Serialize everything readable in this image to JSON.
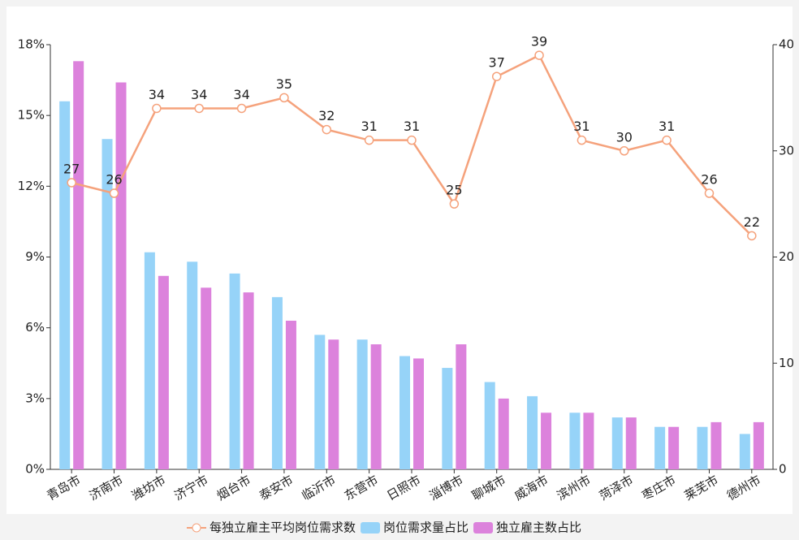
{
  "chart_data": {
    "type": "bar",
    "categories": [
      "青岛市",
      "济南市",
      "潍坊市",
      "济宁市",
      "烟台市",
      "泰安市",
      "临沂市",
      "东营市",
      "日照市",
      "淄博市",
      "聊城市",
      "威海市",
      "滨州市",
      "菏泽市",
      "枣庄市",
      "莱芜市",
      "德州市"
    ],
    "series": [
      {
        "name": "每独立雇主平均岗位需求数",
        "type": "line",
        "axis": "y2",
        "color": "#f5a27c",
        "values": [
          27,
          26,
          34,
          34,
          34,
          35,
          32,
          31,
          31,
          25,
          37,
          39,
          31,
          30,
          31,
          26,
          22
        ]
      },
      {
        "name": "岗位需求量占比",
        "type": "bar",
        "color": "#96d3f8",
        "values": [
          15.6,
          14.0,
          9.2,
          8.8,
          8.3,
          7.3,
          5.7,
          5.5,
          4.8,
          4.3,
          3.7,
          3.1,
          2.4,
          2.2,
          1.8,
          1.8,
          1.5
        ]
      },
      {
        "name": "独立雇主数占比",
        "type": "bar",
        "color": "#dc82dc",
        "values": [
          17.3,
          16.4,
          8.2,
          7.7,
          7.5,
          6.3,
          5.5,
          5.3,
          4.7,
          5.3,
          3.0,
          2.4,
          2.4,
          2.2,
          1.8,
          2.0,
          2.0
        ]
      }
    ],
    "ylim": [
      0,
      18
    ],
    "yticks": [
      {
        "value": 0,
        "label": "0%"
      },
      {
        "value": 3,
        "label": "3%"
      },
      {
        "value": 6,
        "label": "6%"
      },
      {
        "value": 9,
        "label": "9%"
      },
      {
        "value": 12,
        "label": "12%"
      },
      {
        "value": 15,
        "label": "15%"
      },
      {
        "value": 18,
        "label": "18%"
      }
    ],
    "y2lim": [
      0,
      40
    ],
    "y2ticks": [
      0,
      10,
      20,
      30,
      40
    ],
    "legend": "bottom"
  }
}
